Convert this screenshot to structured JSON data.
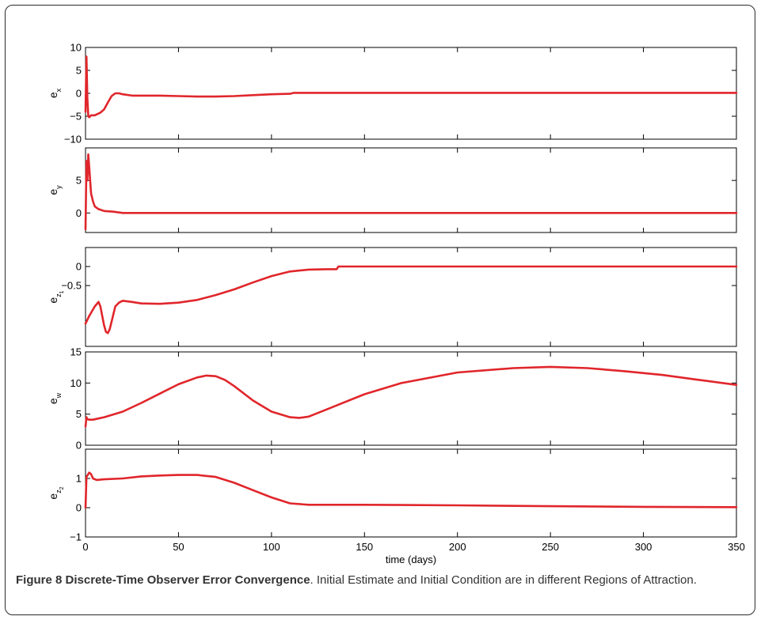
{
  "caption": {
    "figure_title": "Figure 8 Discrete-Time Observer Error Convergence",
    "text": ". Initial Estimate and Initial Condition are in different Regions of Attraction."
  },
  "colors": {
    "series": "#e0262b",
    "axis": "#000000"
  },
  "chart_data": {
    "type": "line",
    "xlabel": "time (days)",
    "xlim": [
      0,
      350
    ],
    "xticks": [
      0,
      50,
      100,
      150,
      200,
      250,
      300,
      350
    ],
    "subplots": [
      {
        "ylabel_main": "e",
        "ylabel_sub": "x",
        "ylim": [
          -10,
          10
        ],
        "yticks": [
          -10,
          -5,
          0,
          5,
          10
        ],
        "ytick_labels": [
          "-10",
          "-5",
          "0",
          "5",
          "10"
        ],
        "x": [
          0,
          0.5,
          1,
          1.5,
          2,
          3,
          5,
          8,
          10,
          12,
          14,
          16,
          18,
          20,
          25,
          30,
          40,
          50,
          60,
          70,
          80,
          90,
          100,
          110,
          112,
          120,
          150,
          200,
          250,
          300,
          350
        ],
        "y": [
          -4,
          8,
          -1,
          -5,
          -5.2,
          -4.8,
          -4.8,
          -4.2,
          -3.5,
          -2,
          -0.6,
          0,
          0,
          -0.2,
          -0.5,
          -0.5,
          -0.5,
          -0.6,
          -0.7,
          -0.7,
          -0.6,
          -0.4,
          -0.2,
          -0.1,
          0.1,
          0.1,
          0.1,
          0.1,
          0.1,
          0.1,
          0.1
        ]
      },
      {
        "ylabel_main": "e",
        "ylabel_sub": "y",
        "ylim": [
          -3,
          10
        ],
        "yticks": [
          0,
          5
        ],
        "ytick_labels": [
          "0",
          "5"
        ],
        "x": [
          0,
          0.5,
          1,
          1.5,
          2,
          3,
          4,
          5,
          7,
          10,
          15,
          20,
          30,
          50,
          100,
          200,
          350
        ],
        "y": [
          -2.5,
          8,
          5,
          9,
          7,
          3,
          1.8,
          1,
          0.6,
          0.3,
          0.2,
          0,
          0,
          0,
          0,
          0,
          0
        ]
      },
      {
        "ylabel_main": "e",
        "ylabel_sub": "z1",
        "ylim": [
          -2.1,
          0.5
        ],
        "yticks": [
          0,
          -0.5
        ],
        "ytick_labels": [
          "0",
          "-0.5"
        ],
        "x": [
          0,
          2,
          5,
          7,
          8,
          9,
          10,
          11,
          12,
          13,
          14,
          16,
          18,
          20,
          25,
          30,
          40,
          50,
          60,
          70,
          80,
          90,
          100,
          110,
          120,
          130,
          135,
          136,
          150,
          200,
          250,
          300,
          350
        ],
        "y": [
          -1.5,
          -1.3,
          -1.05,
          -0.93,
          -1.05,
          -1.3,
          -1.55,
          -1.72,
          -1.75,
          -1.65,
          -1.45,
          -1.05,
          -0.95,
          -0.9,
          -0.93,
          -0.97,
          -0.98,
          -0.95,
          -0.88,
          -0.75,
          -0.6,
          -0.42,
          -0.25,
          -0.13,
          -0.08,
          -0.07,
          -0.07,
          0,
          0,
          0,
          0,
          0,
          0
        ]
      },
      {
        "ylabel_main": "e",
        "ylabel_sub": "w",
        "ylim": [
          0,
          15
        ],
        "yticks": [
          0,
          5,
          10,
          15
        ],
        "ytick_labels": [
          "0",
          "5",
          "10",
          "15"
        ],
        "x": [
          0,
          0.5,
          1,
          2,
          4,
          10,
          20,
          30,
          40,
          50,
          60,
          65,
          70,
          75,
          80,
          90,
          100,
          110,
          115,
          120,
          130,
          150,
          170,
          200,
          230,
          250,
          270,
          290,
          310,
          330,
          350
        ],
        "y": [
          3,
          4.5,
          4.2,
          4.1,
          4.1,
          4.5,
          5.4,
          6.8,
          8.3,
          9.8,
          10.9,
          11.2,
          11.1,
          10.5,
          9.5,
          7.2,
          5.4,
          4.5,
          4.4,
          4.6,
          5.8,
          8.2,
          10,
          11.7,
          12.4,
          12.6,
          12.4,
          11.9,
          11.3,
          10.5,
          9.7
        ]
      },
      {
        "ylabel_main": "e",
        "ylabel_sub": "z2",
        "ylim": [
          -1,
          2
        ],
        "yticks": [
          -1,
          0,
          1
        ],
        "ytick_labels": [
          "-1",
          "0",
          "1"
        ],
        "x": [
          0,
          0.5,
          1,
          2,
          3,
          4,
          6,
          10,
          20,
          30,
          40,
          50,
          60,
          70,
          80,
          90,
          100,
          110,
          120,
          150,
          200,
          250,
          300,
          350
        ],
        "y": [
          0,
          1.05,
          1.1,
          1.2,
          1.15,
          1.0,
          0.95,
          0.97,
          1.0,
          1.07,
          1.1,
          1.12,
          1.12,
          1.05,
          0.85,
          0.6,
          0.35,
          0.15,
          0.1,
          0.1,
          0.08,
          0.05,
          0.03,
          0.02
        ]
      }
    ]
  }
}
